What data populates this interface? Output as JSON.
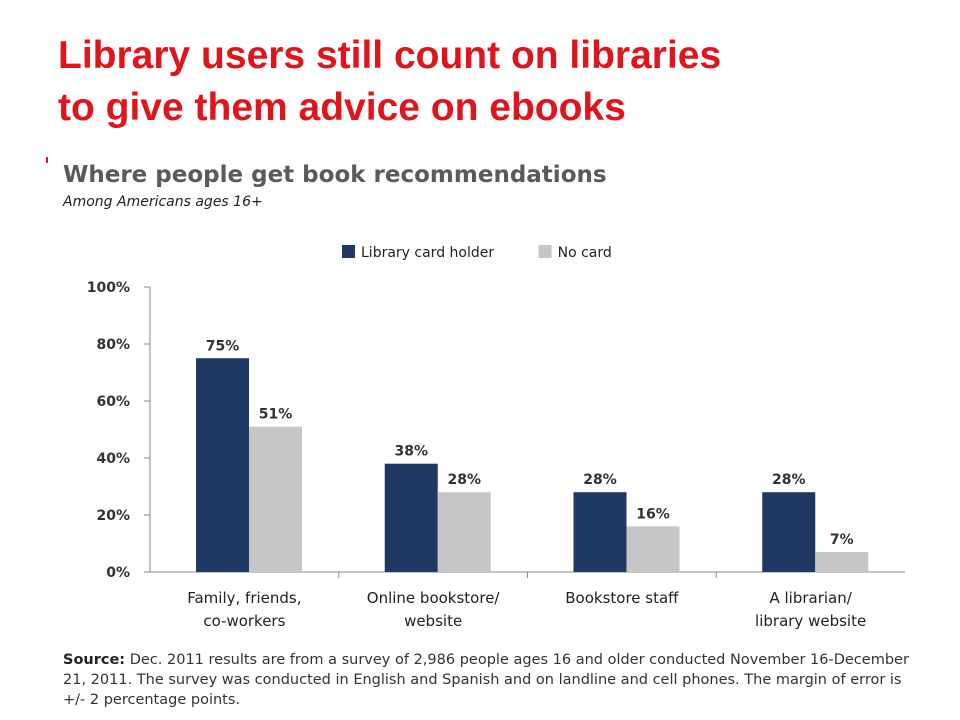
{
  "slide": {
    "title_line1": "Library users still count on libraries",
    "title_line2": "to give them advice on ebooks"
  },
  "chart_data": {
    "type": "bar",
    "title": "Where people get book recommendations",
    "subtitle": "Among Americans ages 16+",
    "categories": [
      [
        "Family, friends,",
        "co-workers"
      ],
      [
        "Online bookstore/",
        "website"
      ],
      [
        "Bookstore staff"
      ],
      [
        "A librarian/",
        "library website"
      ]
    ],
    "series": [
      {
        "name": "Library card holder",
        "color": "#1f3864",
        "values": [
          75,
          38,
          28,
          28
        ],
        "labels": [
          "75%",
          "38%",
          "28%",
          "28%"
        ]
      },
      {
        "name": "No card",
        "color": "#c6c6c6",
        "values": [
          51,
          28,
          16,
          7
        ],
        "labels": [
          "51%",
          "28%",
          "16%",
          "7%"
        ]
      }
    ],
    "ylim": [
      0,
      100
    ],
    "yticks": [
      0,
      20,
      40,
      60,
      80,
      100
    ],
    "ytick_labels": [
      "0%",
      "20%",
      "40%",
      "60%",
      "80%",
      "100%"
    ],
    "legend_position": "top-center",
    "grid": false
  },
  "source": {
    "label": "Source:",
    "text": "Dec. 2011 results are from a survey of 2,986 people ages 16 and older conducted November 16-December 21, 2011. The survey was conducted in English and Spanish and on landline and cell phones. The margin of error is +/- 2 percentage points."
  }
}
